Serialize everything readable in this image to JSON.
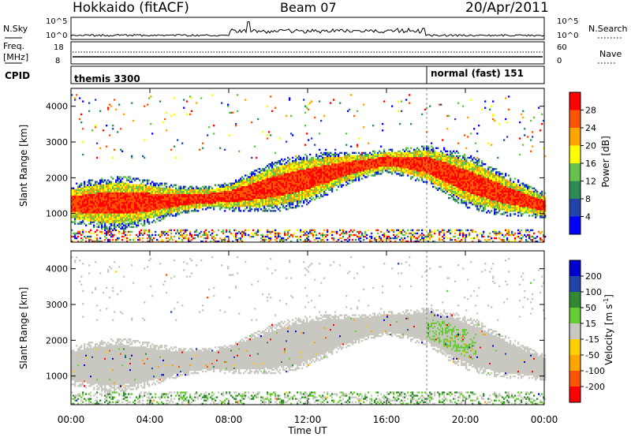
{
  "header": {
    "station": "Hokkaido (fitACF)",
    "beam": "Beam 07",
    "date": "20/Apr/2011"
  },
  "top_panels": {
    "nsky_label": "N.Sky",
    "nsky_ticks": [
      "10^5",
      "10^0"
    ],
    "nsearch_label": "N.Search",
    "freq_label": "Freq.",
    "freq_unit": "[MHz]",
    "freq_ticks": [
      "18",
      "8"
    ],
    "nave_ticks": [
      "60",
      "0"
    ],
    "nave_label": "Nave",
    "cpid_label": "CPID",
    "cpid_modes": [
      {
        "label": "themis 3300",
        "start_hour": 0
      },
      {
        "label": "normal (fast) 151",
        "start_hour": 18
      }
    ]
  },
  "colors": {
    "power_scale": [
      "#0000ff",
      "#2244aa",
      "#2e8b57",
      "#66c24a",
      "#ffff00",
      "#ffa500",
      "#ff5500",
      "#ff0000"
    ],
    "velocity_scale": [
      "#ff0000",
      "#ff5500",
      "#ffa500",
      "#ffd000",
      "#c8c8c0",
      "#66cc33",
      "#338833",
      "#2244aa",
      "#0000cc"
    ]
  },
  "chart_data": [
    {
      "type": "heatmap",
      "name": "power",
      "ylabel": "Slant Range [km]",
      "xlabel": "Time UT",
      "xlim_hours": [
        0,
        24
      ],
      "ylim": [
        200,
        4500
      ],
      "yticks": [
        "1000",
        "2000",
        "3000",
        "4000"
      ],
      "xticks": [
        "00:00",
        "04:00",
        "08:00",
        "12:00",
        "16:00",
        "20:00",
        "00:00"
      ],
      "colorbar": {
        "label": "Power [dB]",
        "range": [
          0,
          32
        ],
        "ticks": [
          "4",
          "8",
          "12",
          "16",
          "20",
          "24",
          "28"
        ]
      },
      "backscatter_band_center_km": [
        {
          "hour": 0,
          "km": 1250
        },
        {
          "hour": 4,
          "km": 1300
        },
        {
          "hour": 8,
          "km": 1450
        },
        {
          "hour": 10,
          "km": 1700
        },
        {
          "hour": 12,
          "km": 1950
        },
        {
          "hour": 14,
          "km": 2250
        },
        {
          "hour": 16,
          "km": 2450
        },
        {
          "hour": 18,
          "km": 2350
        },
        {
          "hour": 20,
          "km": 1900
        },
        {
          "hour": 22,
          "km": 1500
        },
        {
          "hour": 24,
          "km": 1200
        }
      ]
    },
    {
      "type": "heatmap",
      "name": "velocity",
      "ylabel": "Slant Range [km]",
      "xlabel": "Time UT",
      "xlim_hours": [
        0,
        24
      ],
      "ylim": [
        200,
        4500
      ],
      "yticks": [
        "1000",
        "2000",
        "3000",
        "4000"
      ],
      "xticks": [
        "00:00",
        "04:00",
        "08:00",
        "12:00",
        "16:00",
        "20:00",
        "00:00"
      ],
      "colorbar": {
        "label": "Velocity [m s",
        "label_sup": "-1",
        "label_end": "]",
        "range": [
          -250,
          250
        ],
        "ticks": [
          "200",
          "100",
          "50",
          "15",
          "-15",
          "-50",
          "-100",
          "-200"
        ]
      }
    }
  ]
}
